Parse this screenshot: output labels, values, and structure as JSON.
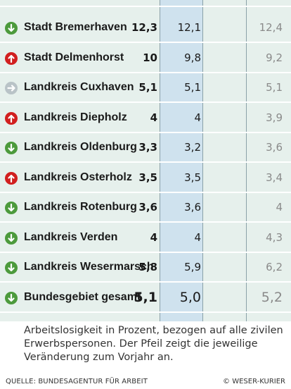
{
  "rows": [
    {
      "name": "Stadt Bremerhaven",
      "trend": "down",
      "current": "12,3",
      "previous": "12,1",
      "older": "12,4"
    },
    {
      "name": "Stadt Delmenhorst",
      "trend": "up",
      "current": "10",
      "previous": "9,8",
      "older": "9,2"
    },
    {
      "name": "Landkreis Cuxhaven",
      "trend": "same",
      "current": "5,1",
      "previous": "5,1",
      "older": "5,1"
    },
    {
      "name": "Landkreis Diepholz",
      "trend": "up",
      "current": "4",
      "previous": "4",
      "older": "3,9"
    },
    {
      "name": "Landkreis Oldenburg",
      "trend": "down",
      "current": "3,3",
      "previous": "3,2",
      "older": "3,6"
    },
    {
      "name": "Landkreis Osterholz",
      "trend": "up",
      "current": "3,5",
      "previous": "3,5",
      "older": "3,4"
    },
    {
      "name": "Landkreis Rotenburg",
      "trend": "down",
      "current": "3,6",
      "previous": "3,6",
      "older": "4"
    },
    {
      "name": "Landkreis Verden",
      "trend": "down",
      "current": "4",
      "previous": "4",
      "older": "4,3"
    },
    {
      "name": "Landkreis Wesermarsch",
      "trend": "down",
      "current": "5,8",
      "previous": "5,9",
      "older": "6,2"
    }
  ],
  "total": {
    "name": "Bundesgebiet gesamt",
    "trend": "down",
    "current": "5,1",
    "previous": "5,0",
    "older": "5,2"
  },
  "caption": "Arbeitslosigkeit in Prozent, bezogen auf alle zivilen Erwerbspersonen. Der Pfeil zeigt die jeweilige Veränderung zum Vorjahr an.",
  "source": "QUELLE: BUNDESAGENTUR FÜR ARBEIT",
  "credit": "© WESER-KURIER",
  "colors": {
    "down": "#4c9a3c",
    "up": "#d11f1f",
    "same": "#b9c3c7"
  },
  "icons": {
    "down": "arrow-down-icon",
    "up": "arrow-up-icon",
    "same": "arrow-right-icon"
  }
}
